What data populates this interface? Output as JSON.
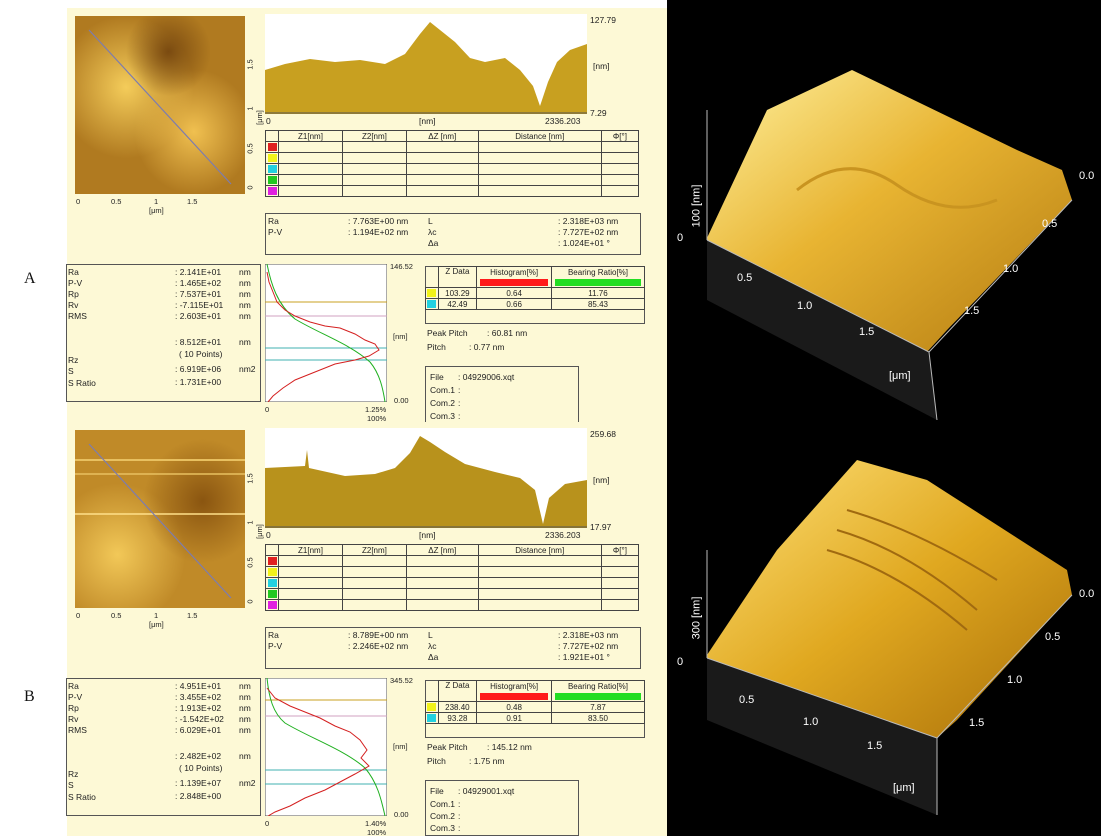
{
  "labels": {
    "a": "A",
    "b": "B"
  },
  "marker_table": {
    "headers": [
      "Z1[nm]",
      "Z2[nm]",
      "ΔZ [nm]",
      "Distance [nm]",
      "Φ[°]"
    ],
    "colors": [
      "#e02020",
      "#f2f21a",
      "#22d0e0",
      "#22c822",
      "#e020e0"
    ]
  },
  "panels": [
    {
      "image_axis": {
        "x_ticks": [
          "0",
          "0.5",
          "1",
          "1.5"
        ],
        "x_unit": "[μm]",
        "y_ticks": [
          "0",
          "0.5",
          "1",
          "1.5"
        ],
        "y_unit": "[μm]"
      },
      "profile": {
        "max": "127.79",
        "min": "7.29",
        "unit": "[nm]",
        "x_start": "0",
        "x_end": "2336.203",
        "x_unit": "[nm]"
      },
      "line_stats": {
        "left": [
          {
            "k": "Ra",
            "v": ": 7.763E+00 nm"
          },
          {
            "k": "P-V",
            "v": ": 1.194E+02 nm"
          }
        ],
        "right": [
          {
            "k": "L",
            "v": ": 2.318E+03 nm"
          },
          {
            "k": "λc",
            "v": ": 7.727E+02 nm"
          },
          {
            "k": "Δa",
            "v": ": 1.024E+01 °"
          }
        ]
      },
      "roughness": [
        {
          "k": "Ra",
          "v": ": 2.141E+01",
          "u": "nm"
        },
        {
          "k": "P-V",
          "v": ": 1.465E+02",
          "u": "nm"
        },
        {
          "k": "Rp",
          "v": ": 7.537E+01",
          "u": "nm"
        },
        {
          "k": "Rv",
          "v": ": -7.115E+01",
          "u": "nm"
        },
        {
          "k": "RMS",
          "v": ": 2.603E+01",
          "u": "nm"
        },
        {
          "k": "",
          "v": ": 8.512E+01",
          "u": "nm"
        },
        {
          "k": "Rz",
          "v": "( 10 Points)",
          "u": ""
        },
        {
          "k": "S",
          "v": ": 6.919E+06",
          "u": "nm2"
        },
        {
          "k": "S Ratio",
          "v": ": 1.731E+00",
          "u": ""
        }
      ],
      "histogram": {
        "top": "146.52",
        "bottom": "0.00",
        "unit": "[nm]",
        "x_start": "0",
        "x_end": "1.25%",
        "x_end2": "100%"
      },
      "zdata": {
        "headers": [
          "Z Data",
          "Histogram[%]",
          "Bearing Ratio[%]"
        ],
        "rows": [
          {
            "color": "#f2f21a",
            "z": "103.29",
            "h": "0.64",
            "b": "11.76"
          },
          {
            "color": "#22d0e0",
            "z": "42.49",
            "h": "0.66",
            "b": "85.43"
          }
        ],
        "peak_pitch_label": "Peak Pitch",
        "peak_pitch": ":    60.81      nm",
        "pitch_label": "Pitch",
        "pitch": ":    0.77   nm"
      },
      "file": {
        "label": "File",
        "value": ": 04929006.xqt",
        "com": [
          "Com.1",
          "Com.2",
          "Com.3"
        ]
      },
      "view3d": {
        "z_label": "100 [nm]",
        "z_zero": "0",
        "x_ticks": [
          "0.5",
          "1.0",
          "1.5"
        ],
        "y_ticks": [
          "0.0",
          "0.5",
          "1.0",
          "1.5"
        ],
        "unit": "[μm]"
      }
    },
    {
      "image_axis": {
        "x_ticks": [
          "0",
          "0.5",
          "1",
          "1.5"
        ],
        "x_unit": "[μm]",
        "y_ticks": [
          "0",
          "0.5",
          "1",
          "1.5"
        ],
        "y_unit": "[μm]"
      },
      "profile": {
        "max": "259.68",
        "min": "17.97",
        "unit": "[nm]",
        "x_start": "0",
        "x_end": "2336.203",
        "x_unit": "[nm]"
      },
      "line_stats": {
        "left": [
          {
            "k": "Ra",
            "v": ": 8.789E+00 nm"
          },
          {
            "k": "P-V",
            "v": ": 2.246E+02 nm"
          }
        ],
        "right": [
          {
            "k": "L",
            "v": ": 2.318E+03 nm"
          },
          {
            "k": "λc",
            "v": ": 7.727E+02 nm"
          },
          {
            "k": "Δa",
            "v": ": 1.921E+01 °"
          }
        ]
      },
      "roughness": [
        {
          "k": "Ra",
          "v": ": 4.951E+01",
          "u": "nm"
        },
        {
          "k": "P-V",
          "v": ": 3.455E+02",
          "u": "nm"
        },
        {
          "k": "Rp",
          "v": ": 1.913E+02",
          "u": "nm"
        },
        {
          "k": "Rv",
          "v": ": -1.542E+02",
          "u": "nm"
        },
        {
          "k": "RMS",
          "v": ": 6.029E+01",
          "u": "nm"
        },
        {
          "k": "",
          "v": ": 2.482E+02",
          "u": "nm"
        },
        {
          "k": "Rz",
          "v": "( 10 Points)",
          "u": ""
        },
        {
          "k": "S",
          "v": ": 1.139E+07",
          "u": "nm2"
        },
        {
          "k": "S Ratio",
          "v": ": 2.848E+00",
          "u": ""
        }
      ],
      "histogram": {
        "top": "345.52",
        "bottom": "0.00",
        "unit": "[nm]",
        "x_start": "0",
        "x_end": "1.40%",
        "x_end2": "100%"
      },
      "zdata": {
        "headers": [
          "Z Data",
          "Histogram[%]",
          "Bearing Ratio[%]"
        ],
        "rows": [
          {
            "color": "#f2f21a",
            "z": "238.40",
            "h": "0.48",
            "b": "7.87"
          },
          {
            "color": "#22d0e0",
            "z": "93.28",
            "h": "0.91",
            "b": "83.50"
          }
        ],
        "peak_pitch_label": "Peak Pitch",
        "peak_pitch": ":    145.12      nm",
        "pitch_label": "Pitch",
        "pitch": ":    1.75   nm"
      },
      "file": {
        "label": "File",
        "value": ": 04929001.xqt",
        "com": [
          "Com.1",
          "Com.2",
          "Com.3"
        ]
      },
      "view3d": {
        "z_label": "300 [nm]",
        "z_zero": "0",
        "x_ticks": [
          "0.5",
          "1.0",
          "1.5"
        ],
        "y_ticks": [
          "0.0",
          "0.5",
          "1.0",
          "1.5"
        ],
        "unit": "[μm]"
      }
    }
  ],
  "colors": {
    "panel_bg": "#fdf9d6",
    "profile_fill": "#c8a020",
    "histogram_curve": "#d42020",
    "bearing_curve": "#20b020",
    "hist_red_bar": "#ff1a1a",
    "bearing_green_bar": "#22dd22"
  }
}
